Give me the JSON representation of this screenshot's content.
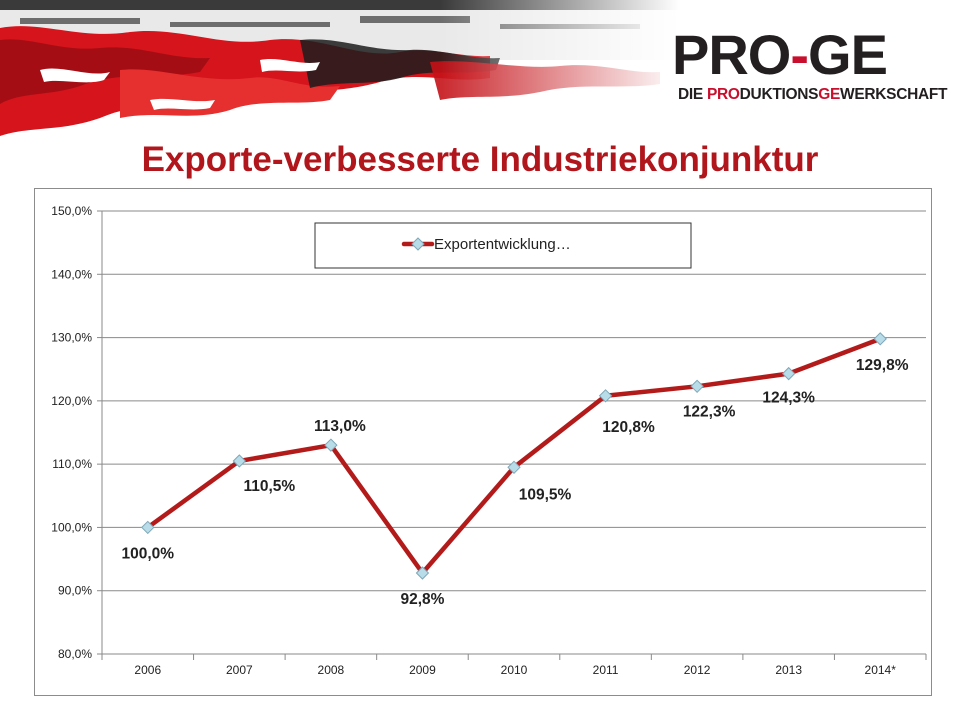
{
  "logo": {
    "main_left": "PRO",
    "main_right": "GE",
    "sub_parts": [
      {
        "text": "DIE ",
        "hl": false
      },
      {
        "text": "PRO",
        "hl": true
      },
      {
        "text": "DUKTIONS",
        "hl": false
      },
      {
        "text": "GE",
        "hl": true
      },
      {
        "text": "WERKSCHAFT",
        "hl": false
      }
    ]
  },
  "page_title": "Exporte-verbesserte Industriekonjunktur",
  "colors": {
    "title": "#b0161b",
    "series_line": "#b31b1b",
    "marker": "#b8dce8",
    "gridline": "#8a8a8a",
    "brand_red": "#c8102e"
  },
  "chart_data": {
    "type": "line",
    "categories": [
      "2006",
      "2007",
      "2008",
      "2009",
      "2010",
      "2011",
      "2012",
      "2013",
      "2014*"
    ],
    "series": [
      {
        "name": "Exportentwicklung…",
        "values": [
          100.0,
          110.5,
          113.0,
          92.8,
          109.5,
          120.8,
          122.3,
          124.3,
          129.8
        ],
        "labels": [
          "100,0%",
          "110,5%",
          "113,0%",
          "92,8%",
          "109,5%",
          "120,8%",
          "122,3%",
          "124,3%",
          "129,8%"
        ]
      }
    ],
    "y_ticks": [
      80,
      90,
      100,
      110,
      120,
      130,
      140,
      150
    ],
    "y_tick_labels": [
      "80,0%",
      "90,0%",
      "100,0%",
      "110,0%",
      "120,0%",
      "130,0%",
      "140,0%",
      "150,0%"
    ],
    "ylim": [
      80,
      150
    ],
    "grid": true,
    "legend": "top-center",
    "title": "",
    "xlabel": "",
    "ylabel": ""
  }
}
